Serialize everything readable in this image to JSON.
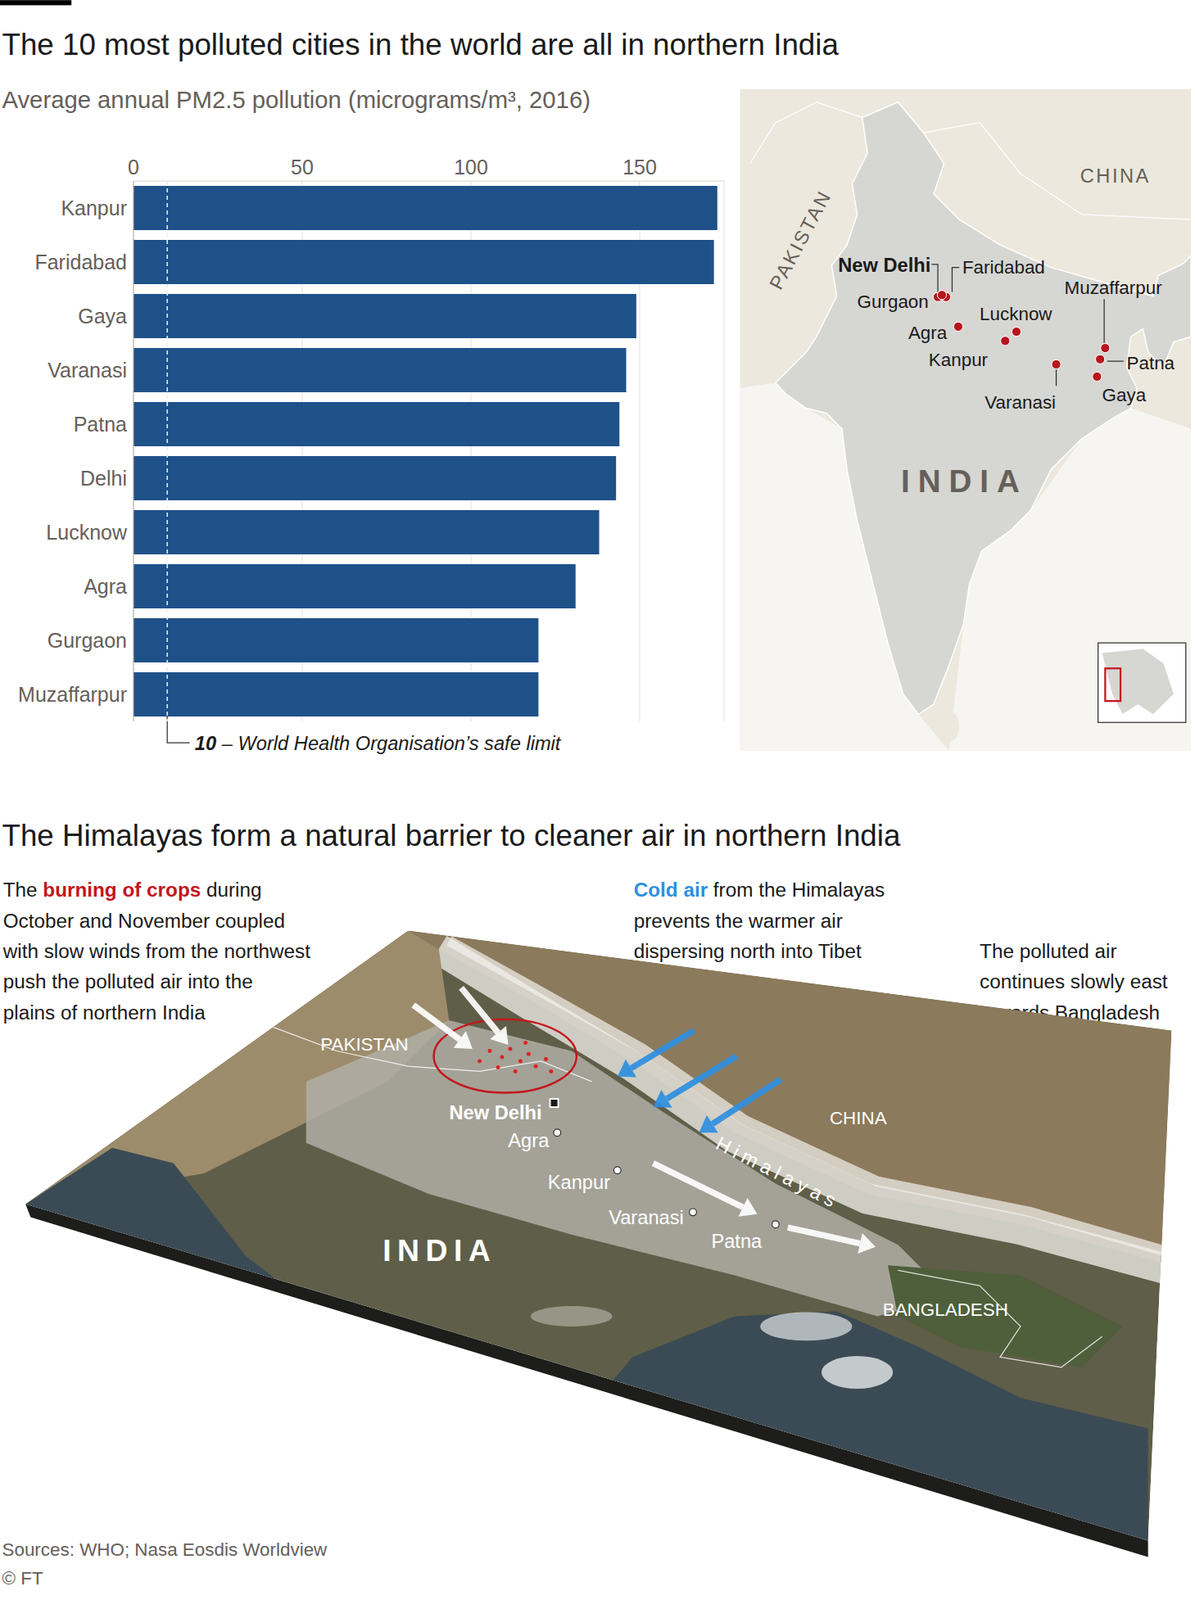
{
  "chart_data": {
    "type": "bar",
    "title": "The 10 most polluted cities in the world are all in northern India",
    "subtitle": "Average annual PM2.5 pollution (micrograms/m³, 2016)",
    "orientation": "horizontal",
    "categories": [
      "Kanpur",
      "Faridabad",
      "Gaya",
      "Varanasi",
      "Patna",
      "Delhi",
      "Lucknow",
      "Agra",
      "Gurgaon",
      "Muzaffarpur"
    ],
    "values": [
      173,
      172,
      149,
      146,
      144,
      143,
      138,
      131,
      120,
      120
    ],
    "color": "#1f5189",
    "xlim": [
      0,
      175
    ],
    "xticks": [
      0,
      50,
      100,
      150
    ],
    "grid": true,
    "reference_line": {
      "value": 10,
      "label": "– World Health Organisation’s safe limit"
    }
  },
  "map": {
    "country_labels": [
      "PAKISTAN",
      "CHINA",
      "INDIA"
    ],
    "capital": "New Delhi",
    "cities": [
      "Faridabad",
      "Gurgaon",
      "Agra",
      "Lucknow",
      "Kanpur",
      "Muzaffarpur",
      "Patna",
      "Varanasi",
      "Gaya"
    ]
  },
  "diagram": {
    "title": "The Himalayas form a natural barrier to cleaner air in northern India",
    "annotations": [
      {
        "lines": [
          "The burning of crops during",
          "October and November coupled",
          "with slow winds from the northwest",
          "push the polluted air into the",
          "plains of northern India"
        ],
        "highlight": "burning of crops",
        "highlight_color": "#c4161c"
      },
      {
        "lines": [
          "Cold air from the Himalayas",
          "prevents the warmer air",
          "dispersing north into Tibet"
        ],
        "highlight": "Cold air",
        "highlight_color": "#2e8fe0"
      },
      {
        "lines": [
          "The polluted air",
          "continues slowly east",
          "towards Bangladesh"
        ]
      }
    ],
    "country_labels": [
      "PAKISTAN",
      "CHINA",
      "INDIA",
      "BANGLADESH"
    ],
    "capital": "New Delhi",
    "cities": [
      "Agra",
      "Kanpur",
      "Varanasi",
      "Patna"
    ],
    "mountain_label": "Himalayas"
  },
  "sources": "Sources: WHO; Nasa Eosdis Worldview",
  "copyright": "© FT"
}
